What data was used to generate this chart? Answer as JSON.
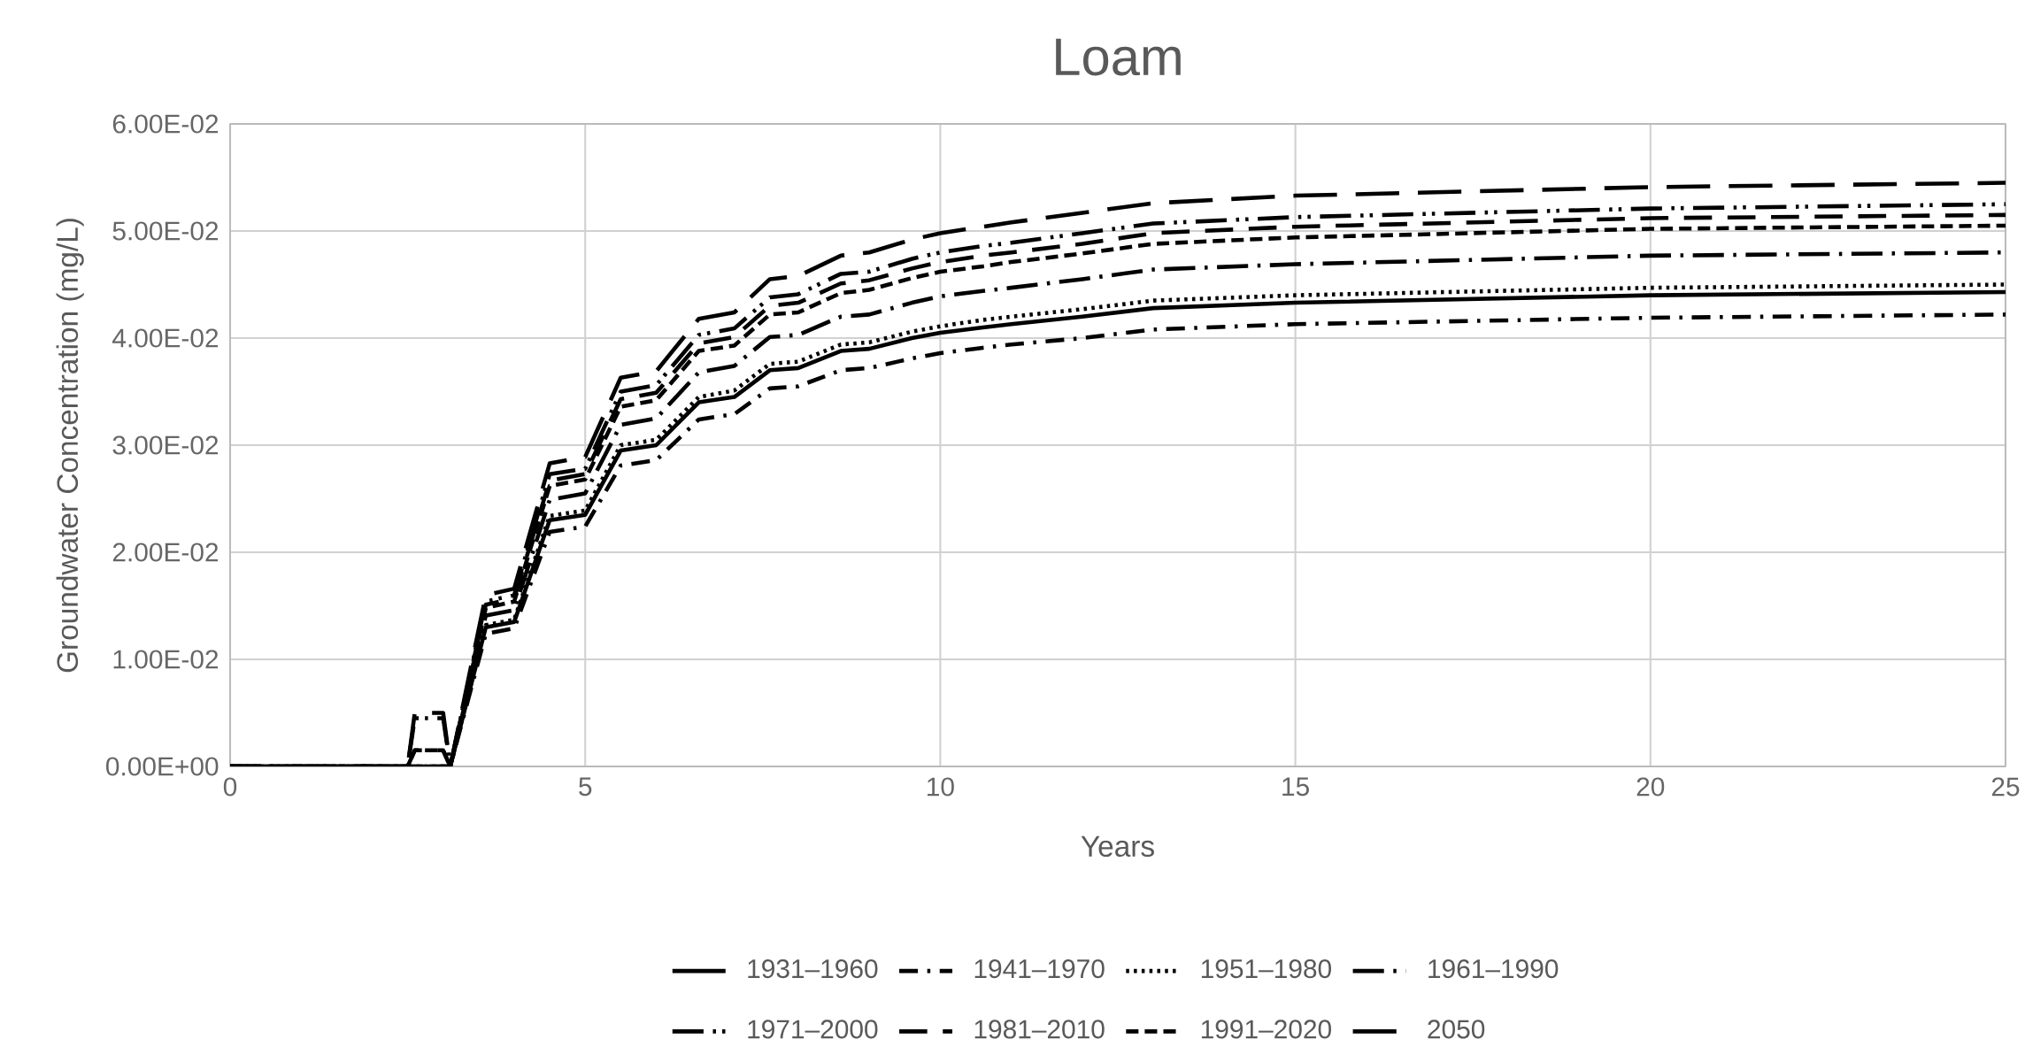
{
  "chart_data": {
    "type": "line",
    "title": "Loam",
    "xlabel": "Years",
    "ylabel": "Groundwater Concentration (mg/L)",
    "x": [
      0,
      2.5,
      2.6,
      3.0,
      3.1,
      3.6,
      4.0,
      4.5,
      5.0,
      5.5,
      6.0,
      6.6,
      7.1,
      7.6,
      8.0,
      8.6,
      9.0,
      9.6,
      10.0,
      10.6,
      11,
      12,
      13,
      15,
      20,
      25
    ],
    "series": [
      {
        "name": "1931–1960",
        "color": "#000000",
        "line_style": "solid",
        "values": [
          0,
          0,
          0,
          0,
          0,
          0.013,
          0.0135,
          0.023,
          0.0235,
          0.0295,
          0.03,
          0.034,
          0.0345,
          0.037,
          0.0372,
          0.0388,
          0.039,
          0.04,
          0.0405,
          0.041,
          0.0413,
          0.042,
          0.0428,
          0.0433,
          0.044,
          0.0443
        ]
      },
      {
        "name": "1941–1970",
        "color": "#000000",
        "line_style": "dashdot",
        "values": [
          0,
          0,
          0,
          0,
          0,
          0.0124,
          0.0129,
          0.0219,
          0.0224,
          0.0281,
          0.0286,
          0.0324,
          0.0329,
          0.0353,
          0.0355,
          0.037,
          0.0372,
          0.0381,
          0.0386,
          0.0391,
          0.0394,
          0.04,
          0.0408,
          0.0413,
          0.0419,
          0.0422
        ]
      },
      {
        "name": "1951–1980",
        "color": "#000000",
        "line_style": "dotted",
        "values": [
          0,
          0,
          0,
          0,
          0,
          0.0132,
          0.0137,
          0.0234,
          0.0239,
          0.03,
          0.0305,
          0.0345,
          0.0351,
          0.0376,
          0.0378,
          0.0394,
          0.0396,
          0.0406,
          0.0411,
          0.0417,
          0.042,
          0.0427,
          0.0435,
          0.044,
          0.0447,
          0.045
        ]
      },
      {
        "name": "1961–1990",
        "color": "#000000",
        "line_style": "longdashdot",
        "values": [
          0,
          0,
          0,
          0,
          0,
          0.0141,
          0.0146,
          0.0249,
          0.0255,
          0.0319,
          0.0325,
          0.0368,
          0.0374,
          0.0401,
          0.0403,
          0.042,
          0.0422,
          0.0433,
          0.0439,
          0.0444,
          0.0447,
          0.0455,
          0.0464,
          0.0469,
          0.0477,
          0.048
        ]
      },
      {
        "name": "1971–2000",
        "color": "#000000",
        "line_style": "longdashdotdot",
        "values": [
          0,
          0,
          0.0045,
          0.0045,
          0,
          0.0154,
          0.016,
          0.0273,
          0.0278,
          0.035,
          0.0356,
          0.0403,
          0.0409,
          0.0438,
          0.0441,
          0.046,
          0.0462,
          0.0474,
          0.048,
          0.0486,
          0.0489,
          0.0498,
          0.0507,
          0.0513,
          0.0521,
          0.0525
        ]
      },
      {
        "name": "1981–2010",
        "color": "#000000",
        "line_style": "dashed",
        "values": [
          0,
          0,
          0.0015,
          0.0015,
          0,
          0.0151,
          0.0157,
          0.0267,
          0.0273,
          0.0343,
          0.0349,
          0.0395,
          0.0401,
          0.043,
          0.0433,
          0.0451,
          0.0454,
          0.0465,
          0.0471,
          0.0477,
          0.048,
          0.0488,
          0.0498,
          0.0504,
          0.0512,
          0.0515
        ]
      },
      {
        "name": "1991–2020",
        "color": "#000000",
        "line_style": "shortdash",
        "values": [
          0,
          0,
          0.0015,
          0.0015,
          0,
          0.0148,
          0.0154,
          0.0262,
          0.0268,
          0.0336,
          0.0342,
          0.0388,
          0.0393,
          0.0422,
          0.0424,
          0.0442,
          0.0445,
          0.0456,
          0.0462,
          0.0467,
          0.0471,
          0.0479,
          0.0488,
          0.0494,
          0.0502,
          0.0505
        ]
      },
      {
        "name": "2050",
        "color": "#000000",
        "line_style": "longdash",
        "values": [
          0,
          0,
          0.005,
          0.005,
          0,
          0.016,
          0.0166,
          0.0283,
          0.0289,
          0.0363,
          0.0369,
          0.0418,
          0.0424,
          0.0455,
          0.0458,
          0.0477,
          0.048,
          0.0492,
          0.0498,
          0.0504,
          0.0508,
          0.0517,
          0.0526,
          0.0533,
          0.0541,
          0.0545
        ]
      }
    ],
    "xlim": [
      0,
      25
    ],
    "xticks": [
      0,
      5,
      10,
      15,
      20,
      25
    ],
    "ylim": [
      0,
      0.06
    ],
    "yticks": [
      {
        "value": 0,
        "label": "0.00E+00"
      },
      {
        "value": 0.01,
        "label": "1.00E-02"
      },
      {
        "value": 0.02,
        "label": "2.00E-02"
      },
      {
        "value": 0.03,
        "label": "3.00E-02"
      },
      {
        "value": 0.04,
        "label": "4.00E-02"
      },
      {
        "value": 0.05,
        "label": "5.00E-02"
      },
      {
        "value": 0.06,
        "label": "6.00E-02"
      }
    ],
    "grid": true,
    "legend": "bottom",
    "marker": "none"
  }
}
